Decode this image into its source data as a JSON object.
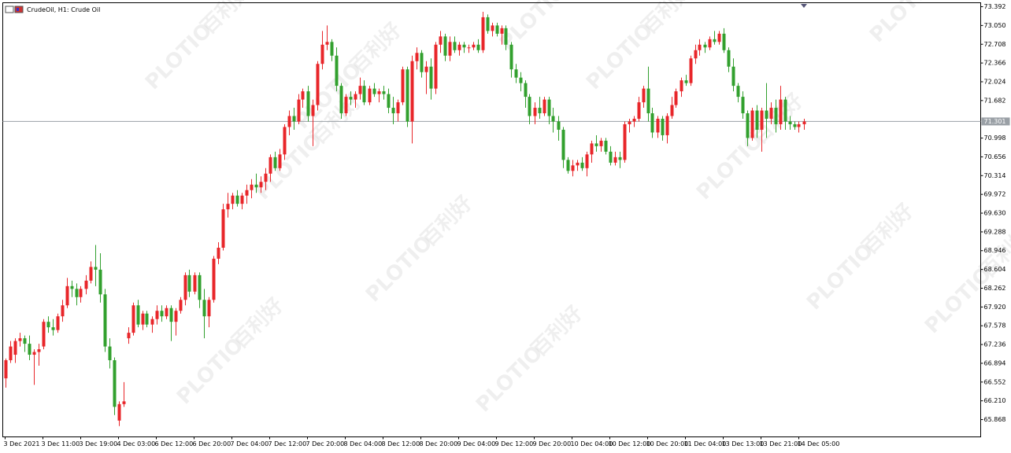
{
  "chart_data": {
    "type": "candlestick",
    "title": "CrudeOil, H1:  Crude Oil",
    "watermark_brand": "PLOTIO",
    "watermark_cn": "百利好",
    "bull_color": "#e8262a",
    "bear_color": "#32a02e",
    "current_price": {
      "value": 71.301,
      "label": "71.301"
    },
    "xlim": [
      -0.5,
      206.5
    ],
    "xticks": [
      {
        "value": 0,
        "label": "3 Dec 2021"
      },
      {
        "value": 8,
        "label": "3 Dec 11:00"
      },
      {
        "value": 16,
        "label": "3 Dec 19:00"
      },
      {
        "value": 24,
        "label": "4 Dec 03:00"
      },
      {
        "value": 32,
        "label": "6 Dec 12:00"
      },
      {
        "value": 40,
        "label": "6 Dec 20:00"
      },
      {
        "value": 48,
        "label": "7 Dec 04:00"
      },
      {
        "value": 56,
        "label": "7 Dec 12:00"
      },
      {
        "value": 64,
        "label": "7 Dec 20:00"
      },
      {
        "value": 72,
        "label": "8 Dec 04:00"
      },
      {
        "value": 80,
        "label": "8 Dec 12:00"
      },
      {
        "value": 88,
        "label": "8 Dec 20:00"
      },
      {
        "value": 96,
        "label": "9 Dec 04:00"
      },
      {
        "value": 104,
        "label": "9 Dec 12:00"
      },
      {
        "value": 112,
        "label": "9 Dec 20:00"
      },
      {
        "value": 120,
        "label": "10 Dec 04:00"
      },
      {
        "value": 128,
        "label": "10 Dec 12:00"
      },
      {
        "value": 136,
        "label": "10 Dec 20:00"
      },
      {
        "value": 144,
        "label": "11 Dec 04:00"
      },
      {
        "value": 152,
        "label": "13 Dec 13:00"
      },
      {
        "value": 160,
        "label": "13 Dec 21:00"
      },
      {
        "value": 168,
        "label": "14 Dec 05:00"
      }
    ],
    "ylim": [
      65.553,
      73.464
    ],
    "yticks": [
      73.392,
      {
        "value": 73.05,
        "label": "73.050"
      },
      72.708,
      72.366,
      72.024,
      71.682,
      70.998,
      70.656,
      70.314,
      69.972,
      {
        "value": 69.63,
        "label": "69.630"
      },
      69.288,
      68.946,
      68.604,
      68.262,
      {
        "value": 67.92,
        "label": "67.920"
      },
      67.578,
      67.236,
      66.894,
      66.552,
      {
        "value": 66.21,
        "label": "66.210"
      },
      65.868
    ],
    "ohlc": [
      [
        66.62,
        66.98,
        66.45,
        66.95
      ],
      [
        66.95,
        67.3,
        66.9,
        67.2
      ],
      [
        67.05,
        67.35,
        66.9,
        67.3
      ],
      [
        67.3,
        67.45,
        67.2,
        67.35
      ],
      [
        67.35,
        67.4,
        67.1,
        67.25
      ],
      [
        67.25,
        67.4,
        66.95,
        67.05
      ],
      [
        67.05,
        67.15,
        66.5,
        67.1
      ],
      [
        67.1,
        67.25,
        66.85,
        67.15
      ],
      [
        67.2,
        67.7,
        67.15,
        67.65
      ],
      [
        67.65,
        67.75,
        67.45,
        67.55
      ],
      [
        67.55,
        67.7,
        67.4,
        67.5
      ],
      [
        67.5,
        67.8,
        67.45,
        67.75
      ],
      [
        67.75,
        68.05,
        67.65,
        67.95
      ],
      [
        67.95,
        68.45,
        67.9,
        68.3
      ],
      [
        68.3,
        68.4,
        68.1,
        68.25
      ],
      [
        68.25,
        68.35,
        67.95,
        68.1
      ],
      [
        68.1,
        68.3,
        68.0,
        68.25
      ],
      [
        68.25,
        68.5,
        68.15,
        68.4
      ],
      [
        68.4,
        68.75,
        68.35,
        68.65
      ],
      [
        68.65,
        69.05,
        68.3,
        68.6
      ],
      [
        68.6,
        68.9,
        68.0,
        68.15
      ],
      [
        68.15,
        68.25,
        67.1,
        67.2
      ],
      [
        67.2,
        67.35,
        66.8,
        66.95
      ],
      [
        66.95,
        67.0,
        65.95,
        66.1
      ],
      [
        65.85,
        66.2,
        65.75,
        66.15
      ],
      [
        66.15,
        66.55,
        66.1,
        66.2
      ],
      [
        67.35,
        67.55,
        67.25,
        67.45
      ],
      [
        67.45,
        68.0,
        67.4,
        67.95
      ],
      [
        67.95,
        68.05,
        67.55,
        67.6
      ],
      [
        67.6,
        67.85,
        67.5,
        67.8
      ],
      [
        67.8,
        67.85,
        67.55,
        67.6
      ],
      [
        67.6,
        67.75,
        67.45,
        67.7
      ],
      [
        67.7,
        67.95,
        67.6,
        67.85
      ],
      [
        67.85,
        67.95,
        67.65,
        67.75
      ],
      [
        67.75,
        67.95,
        67.7,
        67.9
      ],
      [
        67.9,
        67.95,
        67.3,
        67.65
      ],
      [
        67.65,
        67.9,
        67.4,
        67.85
      ],
      [
        67.85,
        68.1,
        67.8,
        68.05
      ],
      [
        68.05,
        68.55,
        67.95,
        68.5
      ],
      [
        68.5,
        68.6,
        68.1,
        68.2
      ],
      [
        68.2,
        68.55,
        68.15,
        68.5
      ],
      [
        68.5,
        68.55,
        67.9,
        68.05
      ],
      [
        68.05,
        68.25,
        67.35,
        67.75
      ],
      [
        67.75,
        68.1,
        67.55,
        68.05
      ],
      [
        68.05,
        68.85,
        68.0,
        68.8
      ],
      [
        68.8,
        69.1,
        68.7,
        69.0
      ],
      [
        69.0,
        69.8,
        68.95,
        69.7
      ],
      [
        69.7,
        70.0,
        69.55,
        69.8
      ],
      [
        69.8,
        70.0,
        69.7,
        69.95
      ],
      [
        69.95,
        70.05,
        69.75,
        69.8
      ],
      [
        69.8,
        70.0,
        69.7,
        69.95
      ],
      [
        69.95,
        70.15,
        69.8,
        70.05
      ],
      [
        70.05,
        70.25,
        69.9,
        70.15
      ],
      [
        70.15,
        70.35,
        70.0,
        70.1
      ],
      [
        70.1,
        70.3,
        70.0,
        70.2
      ],
      [
        70.2,
        70.45,
        70.05,
        70.35
      ],
      [
        70.35,
        70.7,
        70.2,
        70.65
      ],
      [
        70.65,
        70.75,
        70.4,
        70.45
      ],
      [
        70.45,
        70.8,
        70.4,
        70.7
      ],
      [
        70.7,
        71.25,
        70.6,
        71.2
      ],
      [
        71.2,
        71.5,
        71.05,
        71.4
      ],
      [
        71.4,
        71.55,
        71.15,
        71.3
      ],
      [
        71.3,
        71.8,
        71.25,
        71.7
      ],
      [
        71.7,
        71.9,
        71.55,
        71.85
      ],
      [
        71.85,
        71.95,
        71.3,
        71.4
      ],
      [
        71.4,
        71.7,
        70.85,
        71.6
      ],
      [
        71.6,
        72.4,
        71.5,
        72.35
      ],
      [
        72.35,
        72.95,
        72.25,
        72.7
      ],
      [
        72.7,
        73.05,
        72.6,
        72.75
      ],
      [
        72.75,
        72.8,
        72.4,
        72.5
      ],
      [
        72.5,
        72.65,
        71.85,
        71.95
      ],
      [
        71.95,
        72.0,
        71.35,
        71.45
      ],
      [
        71.45,
        71.8,
        71.4,
        71.75
      ],
      [
        71.75,
        71.85,
        71.6,
        71.7
      ],
      [
        71.7,
        71.85,
        71.55,
        71.8
      ],
      [
        71.8,
        72.1,
        71.7,
        71.95
      ],
      [
        71.95,
        72.05,
        71.6,
        71.65
      ],
      [
        71.65,
        71.95,
        71.6,
        71.9
      ],
      [
        71.9,
        72.0,
        71.75,
        71.8
      ],
      [
        71.8,
        71.9,
        71.65,
        71.85
      ],
      [
        71.85,
        71.95,
        71.7,
        71.8
      ],
      [
        71.8,
        71.9,
        71.45,
        71.55
      ],
      [
        71.55,
        71.75,
        71.25,
        71.45
      ],
      [
        71.45,
        71.7,
        71.3,
        71.65
      ],
      [
        71.65,
        72.3,
        71.6,
        72.25
      ],
      [
        72.25,
        72.3,
        71.2,
        71.3
      ],
      [
        71.3,
        72.5,
        70.9,
        72.4
      ],
      [
        72.4,
        72.65,
        72.25,
        72.55
      ],
      [
        72.55,
        72.6,
        72.1,
        72.2
      ],
      [
        72.2,
        72.4,
        71.8,
        72.3
      ],
      [
        72.3,
        72.45,
        71.7,
        71.9
      ],
      [
        71.9,
        72.75,
        71.8,
        72.7
      ],
      [
        72.7,
        72.95,
        72.55,
        72.85
      ],
      [
        72.85,
        72.9,
        72.4,
        72.5
      ],
      [
        72.5,
        72.85,
        72.4,
        72.75
      ],
      [
        72.75,
        72.85,
        72.55,
        72.6
      ],
      [
        72.6,
        72.75,
        72.5,
        72.7
      ],
      [
        72.7,
        72.75,
        72.55,
        72.65
      ],
      [
        72.65,
        72.7,
        72.55,
        72.65
      ],
      [
        72.65,
        72.75,
        72.6,
        72.7
      ],
      [
        72.7,
        72.8,
        72.55,
        72.6
      ],
      [
        72.6,
        73.3,
        72.55,
        73.2
      ],
      [
        73.2,
        73.25,
        72.9,
        72.95
      ],
      [
        72.95,
        73.1,
        72.85,
        73.05
      ],
      [
        73.05,
        73.1,
        72.85,
        72.9
      ],
      [
        72.9,
        73.05,
        72.7,
        73.0
      ],
      [
        73.0,
        73.05,
        72.6,
        72.7
      ],
      [
        72.7,
        72.75,
        72.1,
        72.25
      ],
      [
        72.25,
        72.35,
        72.0,
        72.1
      ],
      [
        72.1,
        72.2,
        71.85,
        72.0
      ],
      [
        72.0,
        72.05,
        71.55,
        71.75
      ],
      [
        71.75,
        71.8,
        71.25,
        71.4
      ],
      [
        71.4,
        71.65,
        71.25,
        71.55
      ],
      [
        71.55,
        71.75,
        71.35,
        71.45
      ],
      [
        71.45,
        71.75,
        71.4,
        71.7
      ],
      [
        71.7,
        71.75,
        71.25,
        71.4
      ],
      [
        71.4,
        71.55,
        71.1,
        71.3
      ],
      [
        71.3,
        71.4,
        70.95,
        71.15
      ],
      [
        71.15,
        71.2,
        70.45,
        70.6
      ],
      [
        70.6,
        70.65,
        70.35,
        70.4
      ],
      [
        70.4,
        70.6,
        70.3,
        70.5
      ],
      [
        70.5,
        70.6,
        70.4,
        70.55
      ],
      [
        70.55,
        70.65,
        70.4,
        70.45
      ],
      [
        70.45,
        70.75,
        70.3,
        70.7
      ],
      [
        70.7,
        70.95,
        70.55,
        70.9
      ],
      [
        70.9,
        71.05,
        70.75,
        70.85
      ],
      [
        70.85,
        71.0,
        70.75,
        70.95
      ],
      [
        70.95,
        71.0,
        70.7,
        70.75
      ],
      [
        70.75,
        70.85,
        70.5,
        70.55
      ],
      [
        70.55,
        70.75,
        70.5,
        70.65
      ],
      [
        70.65,
        70.75,
        70.45,
        70.6
      ],
      [
        70.6,
        71.3,
        70.55,
        71.25
      ],
      [
        71.25,
        71.35,
        71.1,
        71.3
      ],
      [
        71.3,
        71.4,
        71.2,
        71.35
      ],
      [
        71.35,
        71.75,
        71.3,
        71.65
      ],
      [
        71.65,
        71.95,
        71.55,
        71.9
      ],
      [
        71.9,
        72.3,
        71.3,
        71.45
      ],
      [
        71.45,
        71.55,
        71.0,
        71.1
      ],
      [
        71.1,
        71.4,
        71.0,
        71.35
      ],
      [
        71.35,
        71.4,
        70.95,
        71.05
      ],
      [
        71.05,
        71.45,
        70.9,
        71.4
      ],
      [
        71.4,
        71.75,
        71.35,
        71.6
      ],
      [
        71.6,
        71.9,
        71.55,
        71.85
      ],
      [
        71.85,
        72.1,
        71.75,
        72.05
      ],
      [
        72.05,
        72.15,
        71.95,
        72.0
      ],
      [
        72.0,
        72.5,
        71.95,
        72.45
      ],
      [
        72.45,
        72.7,
        72.35,
        72.6
      ],
      [
        72.6,
        72.8,
        72.5,
        72.7
      ],
      [
        72.7,
        72.75,
        72.55,
        72.65
      ],
      [
        72.65,
        72.85,
        72.6,
        72.8
      ],
      [
        72.8,
        72.95,
        72.7,
        72.75
      ],
      [
        72.75,
        72.95,
        72.7,
        72.9
      ],
      [
        72.9,
        73.0,
        72.55,
        72.6
      ],
      [
        72.6,
        72.65,
        72.2,
        72.3
      ],
      [
        72.3,
        72.45,
        71.85,
        71.95
      ],
      [
        71.95,
        72.0,
        71.65,
        71.75
      ],
      [
        71.75,
        71.85,
        71.35,
        71.45
      ],
      [
        71.45,
        71.5,
        70.85,
        71.0
      ],
      [
        71.0,
        71.55,
        70.95,
        71.5
      ],
      [
        71.5,
        71.6,
        71.0,
        71.15
      ],
      [
        71.15,
        71.55,
        70.75,
        71.5
      ],
      [
        71.5,
        72.0,
        71.0,
        71.35
      ],
      [
        71.35,
        71.65,
        71.25,
        71.55
      ],
      [
        71.55,
        71.7,
        71.1,
        71.25
      ],
      [
        71.25,
        71.95,
        71.15,
        71.7
      ],
      [
        71.7,
        71.75,
        71.15,
        71.3
      ],
      [
        71.3,
        71.4,
        71.15,
        71.25
      ],
      [
        71.25,
        71.3,
        71.15,
        71.2
      ],
      [
        71.2,
        71.3,
        71.1,
        71.25
      ],
      [
        71.25,
        71.35,
        71.15,
        71.3
      ]
    ]
  }
}
